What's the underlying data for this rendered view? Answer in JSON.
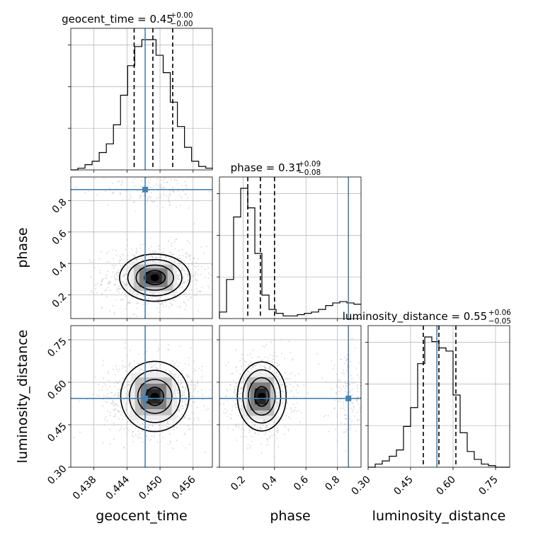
{
  "chart_data": {
    "type": "corner",
    "parameters": [
      "geocent_time",
      "phase",
      "luminosity_distance"
    ],
    "panel_titles": [
      {
        "name": "geocent_time",
        "value": "0.45",
        "plus": "+0.00",
        "minus": "−0.00"
      },
      {
        "name": "phase",
        "value": "0.31",
        "plus": "+0.09",
        "minus": "−0.08"
      },
      {
        "name": "luminosity_distance",
        "value": "0.55",
        "plus": "+0.06",
        "minus": "−0.05"
      }
    ],
    "axis_labels": [
      "geocent_time",
      "phase",
      "luminosity_distance"
    ],
    "ranges": [
      [
        0.4338,
        0.4595
      ],
      [
        0.05,
        0.95
      ],
      [
        0.3,
        0.8
      ]
    ],
    "ticks": {
      "geocent_time": [
        0.438,
        0.444,
        0.45,
        0.456
      ],
      "phase": [
        0.2,
        0.4,
        0.6,
        0.8
      ],
      "luminosity_distance": [
        0.3,
        0.45,
        0.6,
        0.75
      ]
    },
    "tick_labels": {
      "geocent_time": [
        "0.438",
        "0.444",
        "0.450",
        "0.456"
      ],
      "phase": [
        "0.2",
        "0.4",
        "0.6",
        "0.8"
      ],
      "luminosity_distance": [
        "0.30",
        "0.45",
        "0.60",
        "0.75"
      ]
    },
    "truths": {
      "geocent_time": 0.4473,
      "phase": 0.87,
      "luminosity_distance": 0.543
    },
    "quantiles": {
      "geocent_time": [
        0.4453,
        0.4487,
        0.4523
      ],
      "phase": [
        0.23,
        0.31,
        0.4
      ],
      "luminosity_distance": [
        0.495,
        0.55,
        0.61
      ]
    },
    "histograms": {
      "geocent_time": {
        "edges_start": 0.4338,
        "bin_width": 0.00129,
        "counts": [
          0,
          1,
          3,
          5,
          10,
          15,
          26,
          43,
          60,
          71,
          75,
          75,
          66,
          56,
          39,
          25,
          13,
          5,
          2,
          1
        ]
      },
      "phase": {
        "edges_start": 0.05,
        "bin_width": 0.045,
        "counts": [
          5,
          30,
          78,
          100,
          85,
          50,
          18,
          7,
          4,
          2,
          2,
          3,
          4,
          5,
          7,
          10,
          12,
          13,
          12,
          11
        ]
      },
      "luminosity_distance": {
        "edges_start": 0.3,
        "bin_width": 0.025,
        "counts": [
          0,
          2,
          4,
          7,
          11,
          26,
          38,
          66,
          83,
          80,
          76,
          74,
          46,
          22,
          10,
          5,
          2,
          1,
          0,
          0
        ]
      }
    },
    "density_2d": {
      "phase_vs_geocent_time": {
        "centers": [
          [
            0.4488,
            0.31,
            1.0
          ],
          [
            0.4488,
            0.87,
            0.1
          ]
        ],
        "sigmas": [
          [
            0.0036,
            0.08
          ],
          [
            0.0036,
            0.05
          ]
        ],
        "contour_radii": [
          [
            0.0019,
            0.045
          ],
          [
            0.0034,
            0.08
          ],
          [
            0.0049,
            0.115
          ],
          [
            0.0064,
            0.15
          ]
        ]
      },
      "luminosity_distance_vs_geocent_time": {
        "centers": [
          [
            0.4488,
            0.55,
            1.0
          ]
        ],
        "sigmas": [
          [
            0.0036,
            0.055
          ]
        ],
        "contour_radii": [
          [
            0.0016,
            0.032
          ],
          [
            0.0031,
            0.06
          ],
          [
            0.0046,
            0.092
          ],
          [
            0.0062,
            0.124
          ]
        ]
      },
      "luminosity_distance_vs_phase": {
        "centers": [
          [
            0.31,
            0.55,
            1.0
          ],
          [
            0.87,
            0.55,
            0.1
          ]
        ],
        "sigmas": [
          [
            0.08,
            0.055
          ],
          [
            0.05,
            0.055
          ]
        ],
        "contour_radii": [
          [
            0.045,
            0.035
          ],
          [
            0.085,
            0.066
          ],
          [
            0.12,
            0.094
          ],
          [
            0.155,
            0.122
          ]
        ]
      }
    },
    "grid": true,
    "colors": {
      "truth": "#4682b4",
      "histogram": "#000000",
      "quantile": "#000000",
      "scatter": "#b4b4b4",
      "contour": "#000000",
      "grid": "#b0b0b0"
    }
  }
}
